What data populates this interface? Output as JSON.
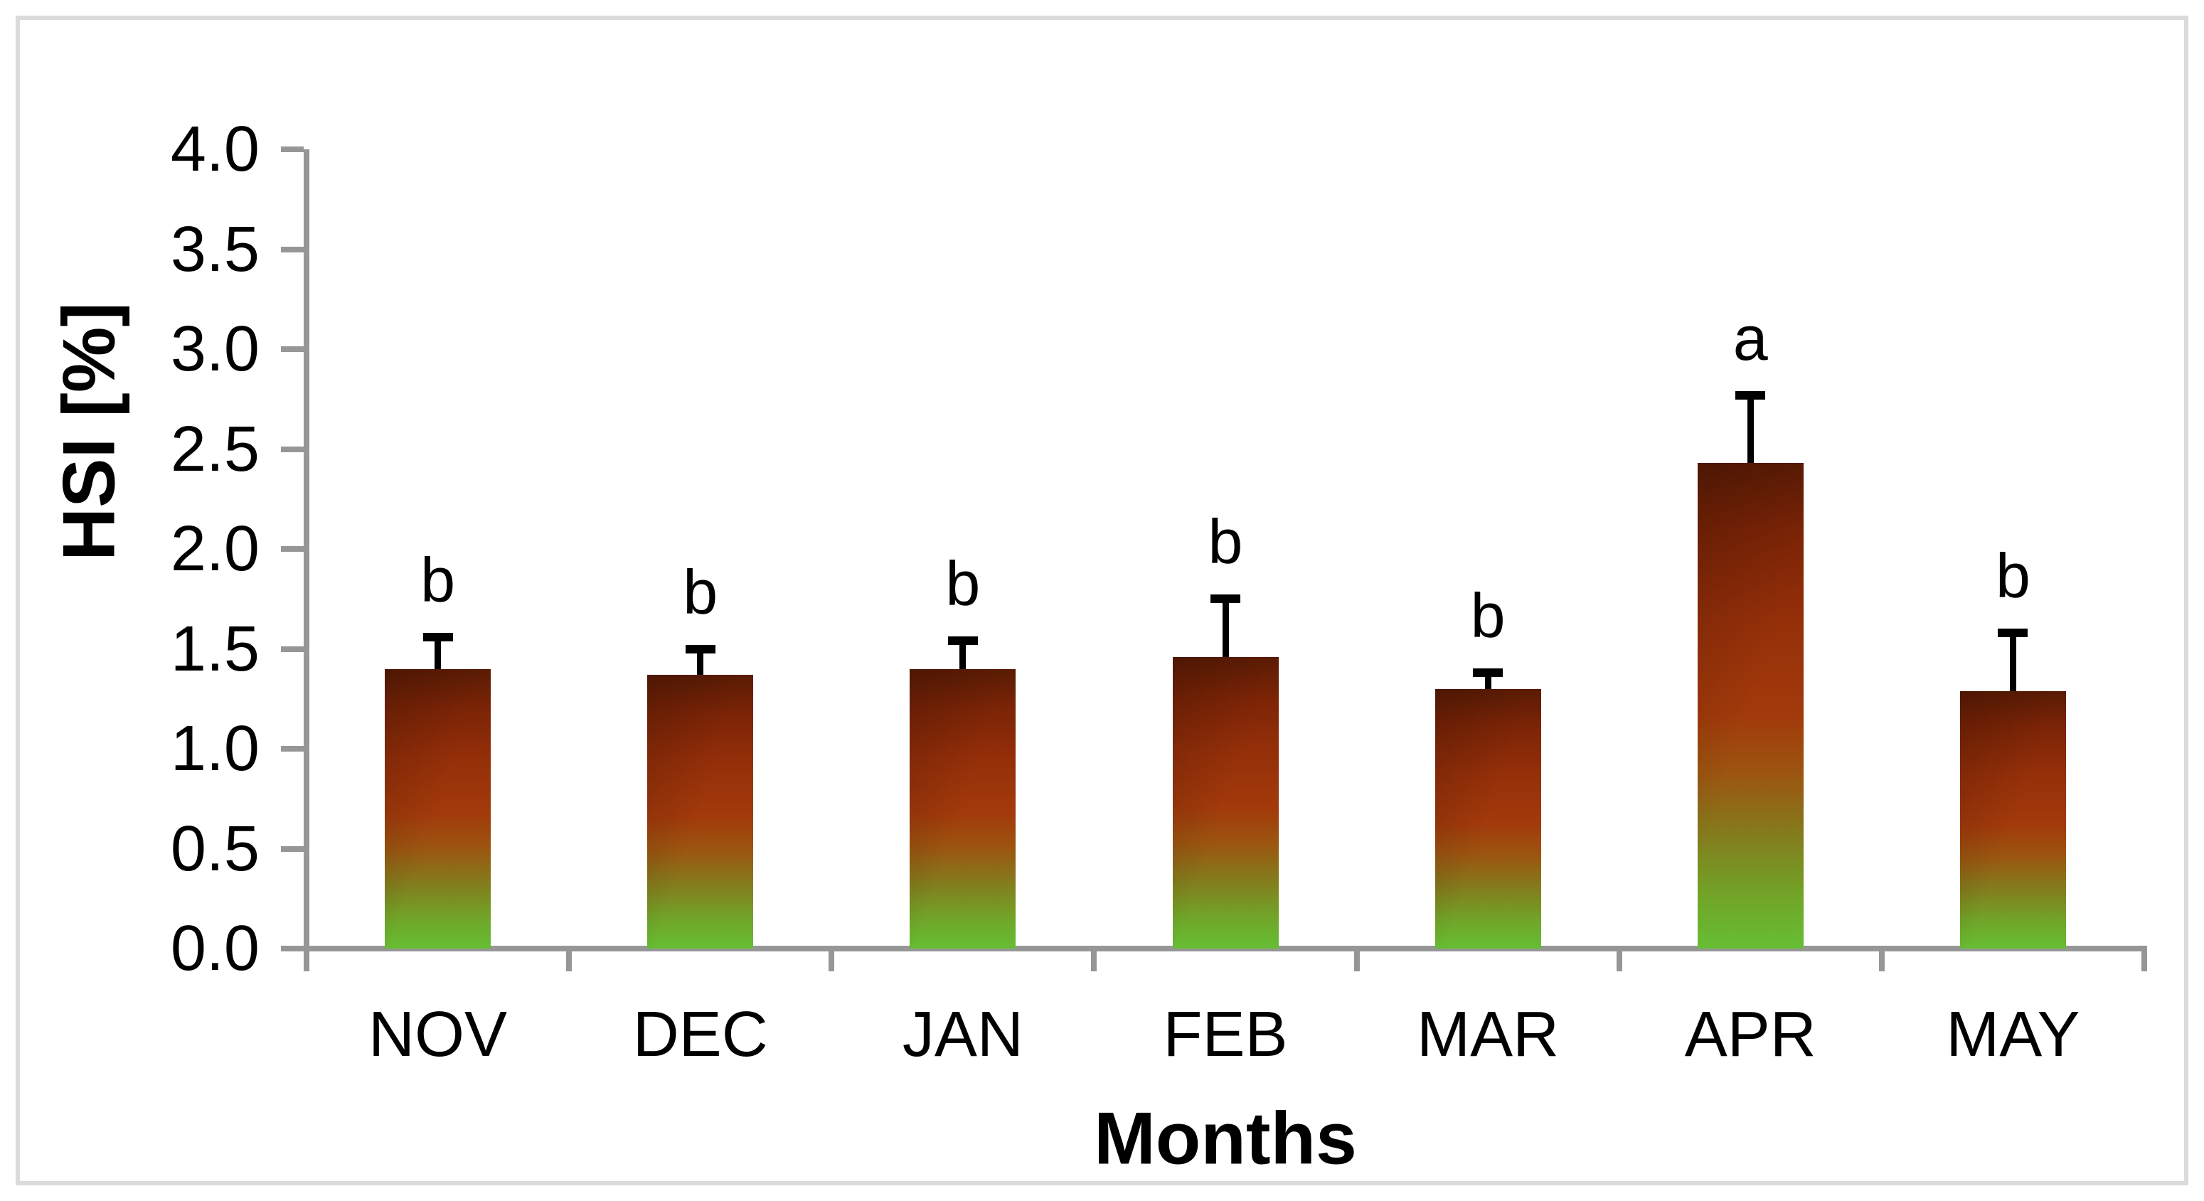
{
  "chart_data": {
    "type": "bar",
    "title": "",
    "xlabel": "Months",
    "ylabel": "HSI [%]",
    "categories": [
      "NOV",
      "DEC",
      "JAN",
      "FEB",
      "MAR",
      "APR",
      "MAY"
    ],
    "values": [
      1.4,
      1.37,
      1.4,
      1.46,
      1.3,
      2.43,
      1.29
    ],
    "errors_plus": [
      0.16,
      0.13,
      0.14,
      0.29,
      0.08,
      0.34,
      0.29
    ],
    "significance_letters": [
      "b",
      "b",
      "b",
      "b",
      "b",
      "a",
      "b"
    ],
    "ylim": [
      0.0,
      4.0
    ],
    "ytick_step": 0.5,
    "ytick_labels": [
      "0.0",
      "0.5",
      "1.0",
      "1.5",
      "2.0",
      "2.5",
      "3.0",
      "3.5",
      "4.0"
    ],
    "grid": false,
    "legend": "none",
    "colors": {
      "bar_gradient_top": "#5a1b04",
      "bar_gradient_mid_red": "#a23a0b",
      "bar_gradient_olive": "#837d1d",
      "bar_gradient_bottom_green": "#66be34",
      "axis_line": "#969696",
      "error_bar": "#000000",
      "text": "#000000",
      "frame_border": "#dbdbdb",
      "background": "#ffffff"
    }
  }
}
